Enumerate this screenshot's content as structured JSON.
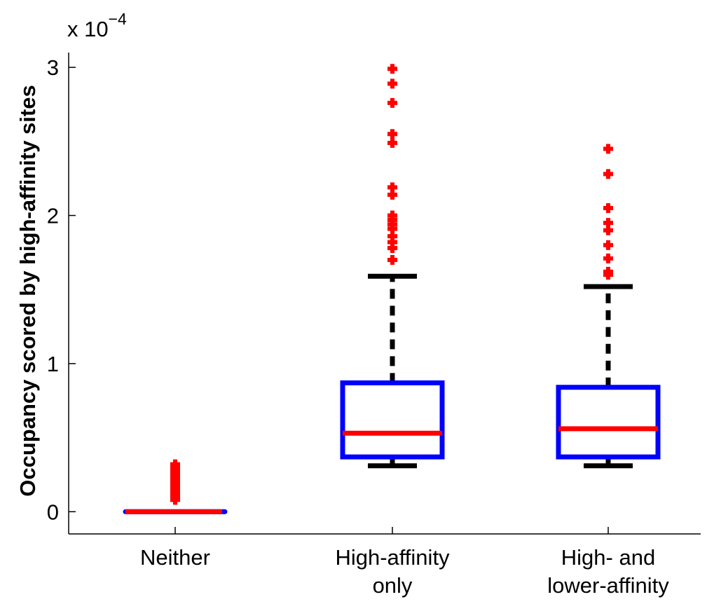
{
  "chart_data": {
    "type": "box",
    "ylabel": "Occupancy scored by high-affinity sites",
    "y_multiplier_label": {
      "base": "x 10",
      "exponent": "−4"
    },
    "ylim": [
      -0.15,
      3.1
    ],
    "yticks": [
      {
        "value": 0,
        "label": "0"
      },
      {
        "value": 1,
        "label": "1"
      },
      {
        "value": 2,
        "label": "2"
      },
      {
        "value": 3,
        "label": "3"
      }
    ],
    "categories": [
      {
        "lines": [
          "Neither"
        ]
      },
      {
        "lines": [
          "High-affinity",
          "only"
        ]
      },
      {
        "lines": [
          "High- and",
          "lower-affinity"
        ]
      }
    ],
    "boxes": [
      {
        "whisker_low": 0,
        "q1": 0,
        "median": 0,
        "q3": 0,
        "whisker_high": 0,
        "outliers": [
          0.08,
          0.1,
          0.12,
          0.14,
          0.16,
          0.18,
          0.2,
          0.22,
          0.24,
          0.26,
          0.28,
          0.3,
          0.32
        ]
      },
      {
        "whisker_low": 0.31,
        "q1": 0.37,
        "median": 0.53,
        "q3": 0.87,
        "whisker_high": 1.59,
        "outliers": [
          1.7,
          1.78,
          1.82,
          1.86,
          1.91,
          1.94,
          1.97,
          2.0,
          2.14,
          2.19,
          2.49,
          2.55,
          2.76,
          2.89,
          2.99
        ]
      },
      {
        "whisker_low": 0.31,
        "q1": 0.37,
        "median": 0.56,
        "q3": 0.84,
        "whisker_high": 1.52,
        "outliers": [
          1.6,
          1.62,
          1.71,
          1.8,
          1.9,
          1.95,
          2.05,
          2.28,
          2.45
        ]
      }
    ],
    "colors": {
      "box": "#0000ff",
      "median": "#ff0000",
      "whisker": "#000000",
      "outlier": "#ff0000",
      "axis": "#000000"
    },
    "grid": false,
    "legend": "none"
  }
}
